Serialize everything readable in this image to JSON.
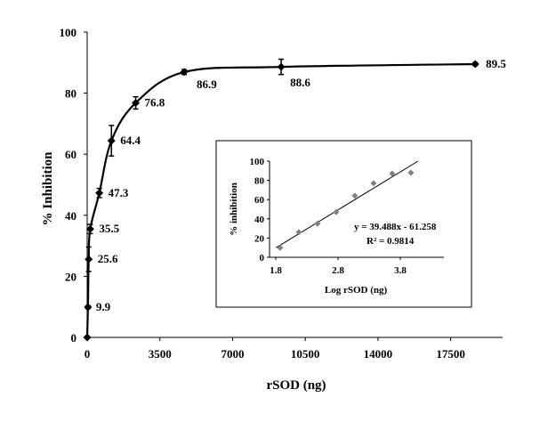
{
  "chart_data": [
    {
      "type": "line",
      "title": "",
      "xlabel": "rSOD (ng)",
      "ylabel": "% Inhibition",
      "xlim": [
        0,
        20000
      ],
      "ylim": [
        0,
        100
      ],
      "x_ticks": [
        "0",
        "3500",
        "7000",
        "10500",
        "14000",
        "17500"
      ],
      "y_ticks": [
        "0",
        "20",
        "40",
        "60",
        "80",
        "100"
      ],
      "marker": "diamond",
      "smooth": true,
      "grid": false,
      "points": [
        {
          "x": 0,
          "y": 0,
          "label": "",
          "err": 0
        },
        {
          "x": 37,
          "y": 9.9,
          "label": "9.9",
          "err": 0.5
        },
        {
          "x": 73,
          "y": 25.6,
          "label": "25.6",
          "err": 4
        },
        {
          "x": 146,
          "y": 35.5,
          "label": "35.5",
          "err": 1.5
        },
        {
          "x": 584,
          "y": 47.3,
          "label": "47.3",
          "err": 1.5
        },
        {
          "x": 1167,
          "y": 64.4,
          "label": "64.4",
          "err": 5
        },
        {
          "x": 2335,
          "y": 76.8,
          "label": "76.8",
          "err": 2
        },
        {
          "x": 4670,
          "y": 86.9,
          "label": "86.9",
          "err": 0.8
        },
        {
          "x": 9340,
          "y": 88.6,
          "label": "88.6",
          "err": 2.5
        },
        {
          "x": 18680,
          "y": 89.5,
          "label": "89.5",
          "err": 0.5
        }
      ]
    },
    {
      "type": "scatter",
      "title": "",
      "xlabel": "Log  rSOD (ng)",
      "ylabel": "% inhibition",
      "xlim": [
        1.7,
        4.5
      ],
      "ylim": [
        0,
        100
      ],
      "x_ticks": [
        "1.8",
        "2.8",
        "3.8"
      ],
      "y_ticks": [
        "0",
        "20",
        "40",
        "60",
        "80",
        "100"
      ],
      "points": [
        {
          "x": 1.87,
          "y": 10
        },
        {
          "x": 2.17,
          "y": 26
        },
        {
          "x": 2.47,
          "y": 35
        },
        {
          "x": 2.77,
          "y": 47
        },
        {
          "x": 3.07,
          "y": 64
        },
        {
          "x": 3.37,
          "y": 77
        },
        {
          "x": 3.67,
          "y": 87
        },
        {
          "x": 3.97,
          "y": 88
        }
      ],
      "trendline": {
        "slope": 39.488,
        "intercept": -61.258
      },
      "equation": "y = 39.488x - 61.258",
      "r_squared": "R² = 0.9814",
      "marker_color": "#7f7f7f",
      "line_color": "#000000"
    }
  ]
}
